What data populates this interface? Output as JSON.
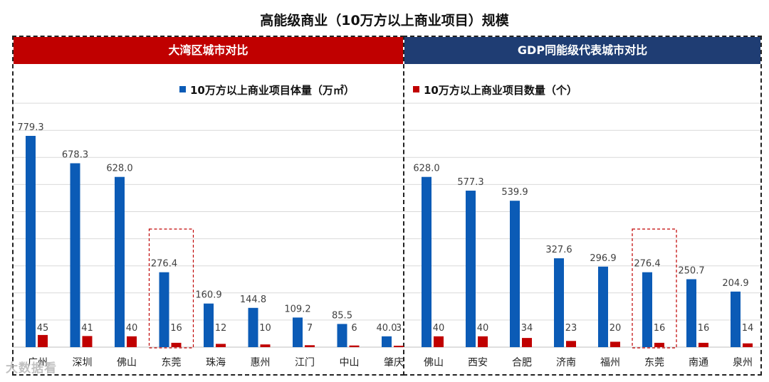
{
  "title": "高能级商业（10万方以上商业项目）规模",
  "colors": {
    "blue": "#0b5bb6",
    "red": "#c00000",
    "header_left": "#c00000",
    "header_right": "#1f3d73",
    "grid": "#d9d9d9"
  },
  "legend": {
    "area": "10万方以上商业项目体量（万㎡）",
    "count": "10万方以上商业项目数量（个）"
  },
  "watermark": "大数据看",
  "chart_data": [
    {
      "type": "bar",
      "title": "大湾区城市对比",
      "categories": [
        "广州",
        "深圳",
        "佛山",
        "东莞",
        "珠海",
        "惠州",
        "江门",
        "中山",
        "肇庆"
      ],
      "series": [
        {
          "name": "10万方以上商业项目体量（万㎡）",
          "values": [
            779.3,
            678.3,
            628.0,
            276.4,
            160.9,
            144.8,
            109.2,
            85.5,
            40.0
          ],
          "labels": [
            "779.3",
            "678.3",
            "628.0",
            "276.4",
            "160.9",
            "144.8",
            "109.2",
            "85.5",
            "40.0"
          ]
        },
        {
          "name": "10万方以上商业项目数量（个）",
          "values": [
            45,
            41,
            40,
            16,
            12,
            10,
            7,
            6,
            3
          ],
          "labels": [
            "45",
            "41",
            "40",
            "16",
            "12",
            "10",
            "7",
            "6",
            "3"
          ]
        }
      ],
      "highlight": "东莞",
      "ylim": [
        0,
        900
      ]
    },
    {
      "type": "bar",
      "title": "GDP同能级代表城市对比",
      "categories": [
        "佛山",
        "西安",
        "合肥",
        "济南",
        "福州",
        "东莞",
        "南通",
        "泉州"
      ],
      "series": [
        {
          "name": "10万方以上商业项目体量（万㎡）",
          "values": [
            628.0,
            577.3,
            539.9,
            327.6,
            296.9,
            276.4,
            250.7,
            204.9
          ],
          "labels": [
            "628.0",
            "577.3",
            "539.9",
            "327.6",
            "296.9",
            "276.4",
            "250.7",
            "204.9"
          ]
        },
        {
          "name": "10万方以上商业项目数量（个）",
          "values": [
            40,
            40,
            34,
            23,
            20,
            16,
            16,
            14
          ],
          "labels": [
            "40",
            "40",
            "34",
            "23",
            "20",
            "16",
            "16",
            "14"
          ]
        }
      ],
      "highlight": "东莞",
      "ylim": [
        0,
        900
      ]
    }
  ]
}
